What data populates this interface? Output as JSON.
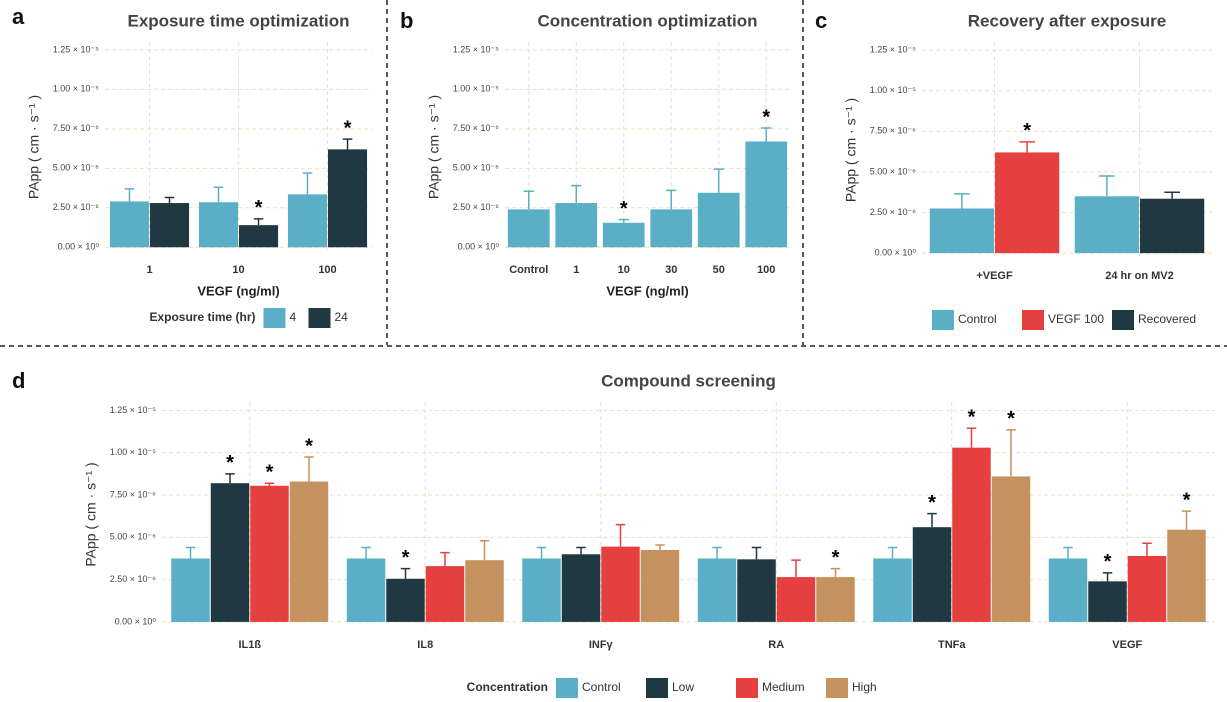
{
  "chart_data": [
    {
      "type": "bar",
      "panel": "a",
      "title": "Exposure time optimization",
      "xlabel": "VEGF (ng/ml)",
      "ylabel": "PApp ( cm · s⁻¹ )",
      "categories": [
        "1",
        "10",
        "100"
      ],
      "legend_title": "Exposure time (hr)",
      "series": [
        {
          "name": "4",
          "color": "#5aafc7",
          "values": [
            2.9e-06,
            2.85e-06,
            3.35e-06
          ],
          "errors": [
            8e-07,
            9.5e-07,
            1.35e-06
          ],
          "significance": [
            null,
            null,
            null
          ]
        },
        {
          "name": "24",
          "color": "#1f3842",
          "values": [
            2.8e-06,
            1.4e-06,
            6.2e-06
          ],
          "errors": [
            3.5e-07,
            4e-07,
            6.5e-07
          ],
          "significance": [
            null,
            "*",
            "*"
          ]
        }
      ],
      "ylim": [
        -3e-07,
        1.3e-05
      ],
      "yticks": [
        {
          "value": 0,
          "label": "0.00 × 10⁰"
        },
        {
          "value": 2.5e-06,
          "label": "2.50 × 10⁻⁶"
        },
        {
          "value": 5e-06,
          "label": "5.00 × 10⁻⁶"
        },
        {
          "value": 7.5e-06,
          "label": "7.50 × 10⁻⁶"
        },
        {
          "value": 1e-05,
          "label": "1.00 × 10⁻⁵"
        },
        {
          "value": 1.25e-05,
          "label": "1.25 × 10⁻⁵"
        }
      ],
      "grid": true
    },
    {
      "type": "bar",
      "panel": "b",
      "title": "Concentration optimization",
      "xlabel": "VEGF (ng/ml)",
      "ylabel": "PApp ( cm · s⁻¹ )",
      "categories": [
        "Control",
        "1",
        "10",
        "30",
        "50",
        "100"
      ],
      "series": [
        {
          "color": "#5aafc7",
          "values": [
            2.4e-06,
            2.8e-06,
            1.55e-06,
            2.4e-06,
            3.45e-06,
            6.7e-06
          ],
          "errors": [
            1.15e-06,
            1.1e-06,
            2e-07,
            1.2e-06,
            1.5e-06,
            8.5e-07
          ],
          "significance": [
            null,
            null,
            "*",
            null,
            null,
            "*"
          ]
        }
      ],
      "ylim": [
        -3e-07,
        1.3e-05
      ],
      "yticks": [
        {
          "value": 0,
          "label": "0.00 × 10⁰"
        },
        {
          "value": 2.5e-06,
          "label": "2.50 × 10⁻⁶"
        },
        {
          "value": 5e-06,
          "label": "5.00 × 10⁻⁶"
        },
        {
          "value": 7.5e-06,
          "label": "7.50 × 10⁻⁶"
        },
        {
          "value": 1e-05,
          "label": "1.00 × 10⁻⁵"
        },
        {
          "value": 1.25e-05,
          "label": "1.25 × 10⁻⁵"
        }
      ],
      "grid": true
    },
    {
      "type": "bar",
      "panel": "c",
      "title": "Recovery after exposure",
      "ylabel": "PApp ( cm · s⁻¹ )",
      "categories": [
        "+VEGF",
        "24 hr on MV2"
      ],
      "series": [
        {
          "name": "Control",
          "color": "#5aafc7",
          "values": [
            2.75e-06,
            3.5e-06
          ],
          "errors": [
            9e-07,
            1.25e-06
          ],
          "significance": [
            null,
            null
          ]
        },
        {
          "name": "VEGF 100",
          "color": "#e5403f",
          "values": [
            6.2e-06,
            null
          ],
          "errors": [
            6.5e-07,
            null
          ],
          "significance": [
            "*",
            null
          ]
        },
        {
          "name": "Recovered",
          "color": "#1f3842",
          "values": [
            null,
            3.35e-06
          ],
          "errors": [
            null,
            4e-07
          ],
          "significance": [
            null,
            null
          ]
        }
      ],
      "ylim": [
        -3e-07,
        1.3e-05
      ],
      "yticks": [
        {
          "value": 0,
          "label": "0.00 × 10⁰"
        },
        {
          "value": 2.5e-06,
          "label": "2.50 × 10⁻⁶"
        },
        {
          "value": 5e-06,
          "label": "5.00 × 10⁻⁶"
        },
        {
          "value": 7.5e-06,
          "label": "7.50 × 10⁻⁶"
        },
        {
          "value": 1e-05,
          "label": "1.00 × 10⁻⁵"
        },
        {
          "value": 1.25e-05,
          "label": "1.25 × 10⁻⁵"
        }
      ],
      "grid": true
    },
    {
      "type": "bar",
      "panel": "d",
      "title": "Compound screening",
      "ylabel": "PApp ( cm · s⁻¹ )",
      "categories": [
        "IL1ß",
        "IL8",
        "INFγ",
        "RA",
        "TNFa",
        "VEGF"
      ],
      "legend_title": "Concentration",
      "series": [
        {
          "name": "Control",
          "color": "#5aafc7",
          "values": [
            3.75e-06,
            3.75e-06,
            3.75e-06,
            3.75e-06,
            3.75e-06,
            3.75e-06
          ],
          "errors": [
            6.5e-07,
            6.5e-07,
            6.5e-07,
            6.5e-07,
            6.5e-07,
            6.5e-07
          ],
          "significance": [
            null,
            null,
            null,
            null,
            null,
            null
          ]
        },
        {
          "name": "Low",
          "color": "#1f3842",
          "values": [
            8.2e-06,
            2.55e-06,
            4e-06,
            3.7e-06,
            5.6e-06,
            2.4e-06
          ],
          "errors": [
            5.5e-07,
            6e-07,
            4e-07,
            7e-07,
            8e-07,
            5e-07
          ],
          "significance": [
            "*",
            "*",
            null,
            null,
            "*",
            "*"
          ]
        },
        {
          "name": "Medium",
          "color": "#e5403f",
          "values": [
            8.05e-06,
            3.3e-06,
            4.45e-06,
            2.65e-06,
            1.03e-05,
            3.9e-06
          ],
          "errors": [
            1.5e-07,
            8e-07,
            1.3e-06,
            1e-06,
            1.15e-06,
            7.5e-07
          ],
          "significance": [
            "*",
            null,
            null,
            null,
            "*",
            null
          ]
        },
        {
          "name": "High",
          "color": "#c4925e",
          "values": [
            8.3e-06,
            3.65e-06,
            4.25e-06,
            2.65e-06,
            8.6e-06,
            5.45e-06
          ],
          "errors": [
            1.45e-06,
            1.15e-06,
            3e-07,
            5e-07,
            2.75e-06,
            1.1e-06
          ],
          "significance": [
            "*",
            null,
            null,
            "*",
            "*",
            "*"
          ]
        }
      ],
      "ylim": [
        -3e-07,
        1.3e-05
      ],
      "yticks": [
        {
          "value": 0,
          "label": "0.00 × 10⁰"
        },
        {
          "value": 2.5e-06,
          "label": "2.50 × 10⁻⁶"
        },
        {
          "value": 5e-06,
          "label": "5.00 × 10⁻⁶"
        },
        {
          "value": 7.5e-06,
          "label": "7.50 × 10⁻⁶"
        },
        {
          "value": 1e-05,
          "label": "1.00 × 10⁻⁵"
        },
        {
          "value": 1.25e-05,
          "label": "1.25 × 10⁻⁵"
        }
      ],
      "grid": true
    }
  ]
}
